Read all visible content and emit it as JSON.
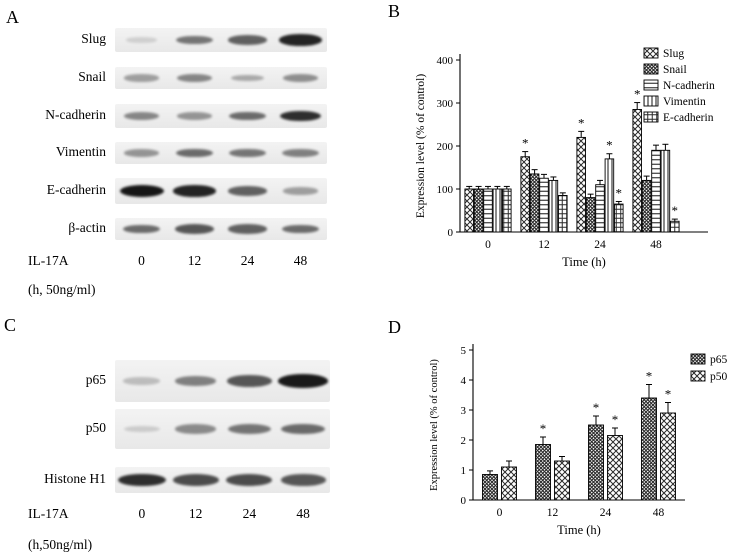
{
  "panel_a": {
    "label": "A",
    "blot_rows": [
      {
        "name": "Slug",
        "band_intensities": [
          0.06,
          0.5,
          0.6,
          0.9
        ]
      },
      {
        "name": "Snail",
        "band_intensities": [
          0.3,
          0.42,
          0.25,
          0.38
        ]
      },
      {
        "name": "N-cadherin",
        "band_intensities": [
          0.42,
          0.35,
          0.55,
          0.85
        ]
      },
      {
        "name": "Vimentin",
        "band_intensities": [
          0.35,
          0.55,
          0.5,
          0.45
        ]
      },
      {
        "name": "E-cadherin",
        "band_intensities": [
          1.0,
          0.9,
          0.6,
          0.3
        ]
      },
      {
        "name": "β-actin",
        "band_intensities": [
          0.55,
          0.65,
          0.6,
          0.55
        ]
      }
    ],
    "treatment": {
      "label": "IL-17A",
      "unit": "(h, 50ng/ml)",
      "timepoints": [
        "0",
        "12",
        "24",
        "48"
      ]
    }
  },
  "panel_b": {
    "label": "B"
  },
  "panel_c": {
    "label": "C",
    "blot_rows": [
      {
        "name": "p65",
        "band_intensities": [
          0.15,
          0.45,
          0.65,
          0.95
        ]
      },
      {
        "name": "p50",
        "band_intensities": [
          0.08,
          0.4,
          0.5,
          0.55
        ]
      },
      {
        "name": "Histone H1",
        "band_intensities": [
          0.85,
          0.7,
          0.7,
          0.65
        ]
      }
    ],
    "treatment": {
      "label": "IL-17A",
      "unit": "(h,50ng/ml)",
      "timepoints": [
        "0",
        "12",
        "24",
        "48"
      ]
    }
  },
  "panel_d": {
    "label": "D"
  },
  "significance_marker": "*",
  "chart_data": [
    {
      "id": "chart-b",
      "type": "bar",
      "title": "",
      "xlabel": "Time (h)",
      "ylabel": "Expression level (% of control)",
      "categories": [
        "0",
        "12",
        "24",
        "48"
      ],
      "ylim": [
        0,
        400
      ],
      "yticks": [
        0,
        100,
        200,
        300,
        400
      ],
      "legend_position": "top-right",
      "grid": false,
      "series": [
        {
          "name": "Slug",
          "pattern": "diag-cross",
          "values": [
            100,
            175,
            220,
            285
          ],
          "errors": [
            6,
            12,
            14,
            16
          ],
          "sig": [
            false,
            true,
            true,
            true
          ]
        },
        {
          "name": "Snail",
          "pattern": "weave",
          "values": [
            100,
            135,
            80,
            120
          ],
          "errors": [
            6,
            10,
            8,
            10
          ],
          "sig": [
            false,
            false,
            false,
            false
          ]
        },
        {
          "name": "N-cadherin",
          "pattern": "horiz",
          "values": [
            100,
            125,
            110,
            190
          ],
          "errors": [
            6,
            9,
            10,
            12
          ],
          "sig": [
            false,
            false,
            false,
            false
          ]
        },
        {
          "name": "Vimentin",
          "pattern": "vert",
          "values": [
            100,
            120,
            170,
            190
          ],
          "errors": [
            6,
            8,
            12,
            14
          ],
          "sig": [
            false,
            false,
            true,
            false
          ]
        },
        {
          "name": "E-cadherin",
          "pattern": "grid",
          "values": [
            100,
            85,
            65,
            25
          ],
          "errors": [
            6,
            6,
            6,
            5
          ],
          "sig": [
            false,
            false,
            true,
            true
          ]
        }
      ]
    },
    {
      "id": "chart-d",
      "type": "bar",
      "title": "",
      "xlabel": "Time (h)",
      "ylabel": "Expression level (% of control)",
      "categories": [
        "0",
        "12",
        "24",
        "48"
      ],
      "ylim": [
        0,
        5
      ],
      "yticks": [
        0,
        1,
        2,
        3,
        4,
        5
      ],
      "legend_position": "top-right",
      "grid": false,
      "series": [
        {
          "name": "p65",
          "pattern": "weave",
          "values": [
            0.85,
            1.85,
            2.5,
            3.4
          ],
          "errors": [
            0.12,
            0.25,
            0.3,
            0.45
          ],
          "sig": [
            false,
            true,
            true,
            true
          ]
        },
        {
          "name": "p50",
          "pattern": "diag-cross",
          "values": [
            1.1,
            1.3,
            2.15,
            2.9
          ],
          "errors": [
            0.2,
            0.15,
            0.25,
            0.35
          ],
          "sig": [
            false,
            false,
            true,
            true
          ]
        }
      ]
    }
  ]
}
